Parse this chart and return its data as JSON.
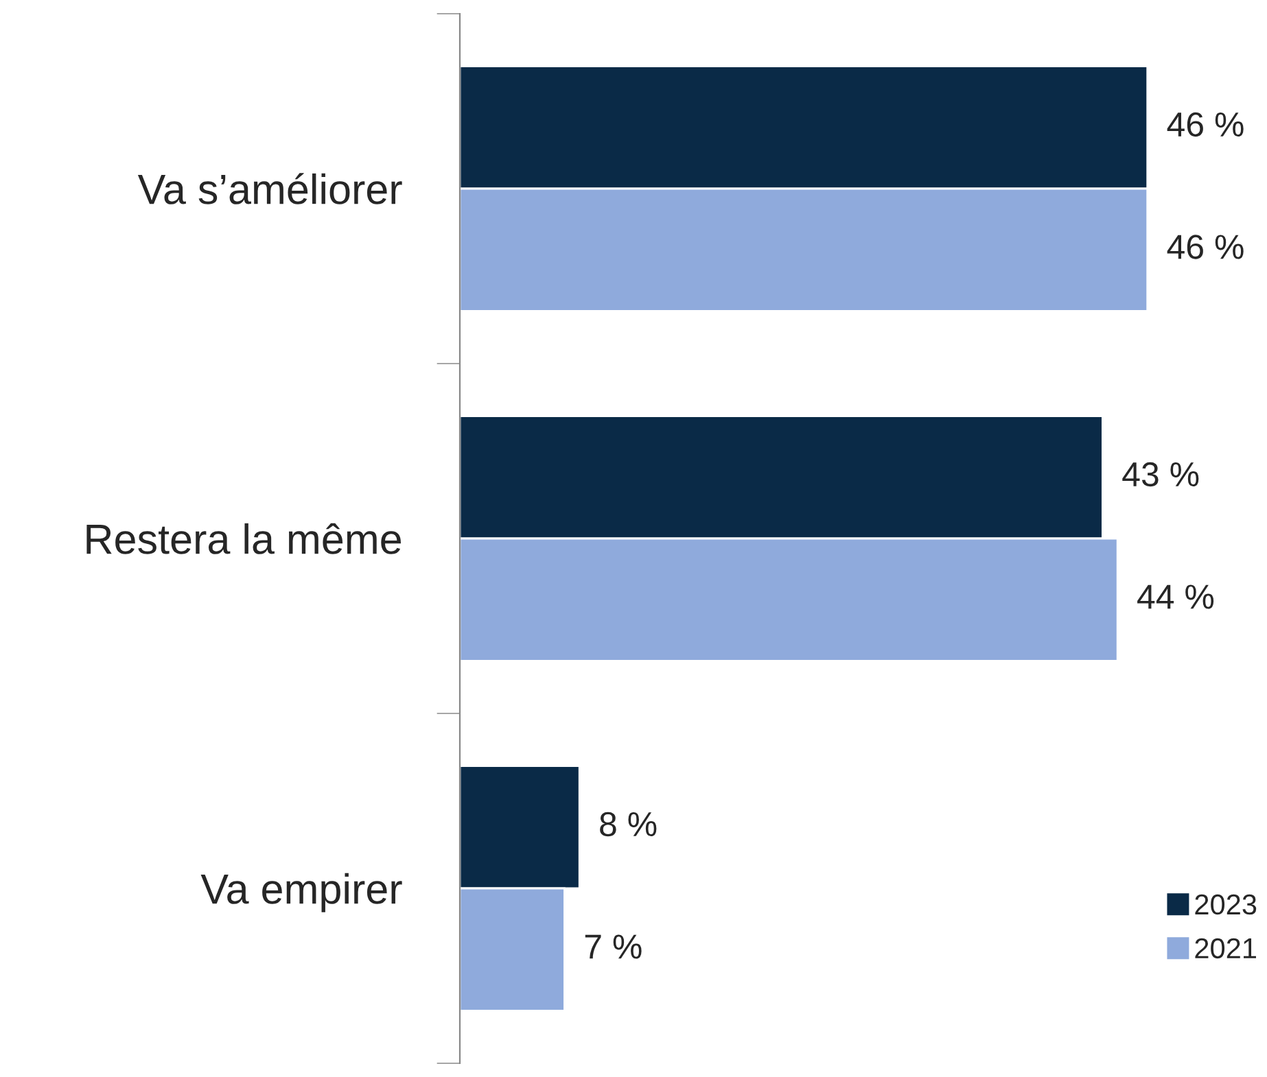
{
  "chart_data": {
    "type": "bar",
    "orientation": "horizontal",
    "categories": [
      "Va s’améliorer",
      "Restera la même",
      "Va empirer"
    ],
    "series": [
      {
        "name": "2023",
        "color": "#0a2a47",
        "values": [
          46,
          43,
          8
        ],
        "value_labels": [
          "46 %",
          "43 %",
          "8 %"
        ]
      },
      {
        "name": "2021",
        "color": "#8faadc",
        "values": [
          46,
          44,
          7
        ],
        "value_labels": [
          "46 %",
          "44 %",
          "7 %"
        ]
      }
    ],
    "legend": "bottom right",
    "grid": false
  }
}
